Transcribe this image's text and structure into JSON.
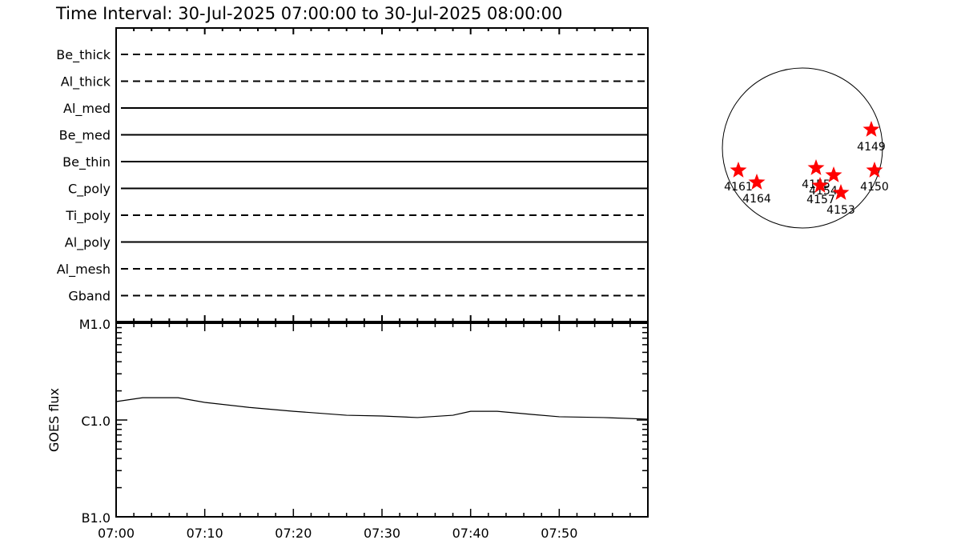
{
  "title": "Time Interval: 30-Jul-2025 07:00:00 to 30-Jul-2025 08:00:00",
  "chart_data": [
    {
      "type": "table",
      "rows": [
        {
          "label": "Be_thick",
          "style": "dashed"
        },
        {
          "label": "Al_thick",
          "style": "dashed"
        },
        {
          "label": "Al_med",
          "style": "solid"
        },
        {
          "label": "Be_med",
          "style": "solid"
        },
        {
          "label": "Be_thin",
          "style": "solid"
        },
        {
          "label": "C_poly",
          "style": "solid"
        },
        {
          "label": "Ti_poly",
          "style": "dashed"
        },
        {
          "label": "Al_poly",
          "style": "solid"
        },
        {
          "label": "Al_mesh",
          "style": "dashed"
        },
        {
          "label": "Gband",
          "style": "dashed"
        }
      ]
    },
    {
      "type": "line",
      "ylabel": "GOES flux",
      "yscale": "log",
      "ylim": [
        1e-07,
        1e-05
      ],
      "yticks": [
        {
          "value": 1e-05,
          "label": "M1.0"
        },
        {
          "value": 1e-06,
          "label": "C1.0"
        },
        {
          "value": 1e-07,
          "label": "B1.0"
        }
      ],
      "xlim": [
        "07:00",
        "08:00"
      ],
      "xticks": [
        "07:00",
        "07:10",
        "07:20",
        "07:30",
        "07:40",
        "07:50"
      ],
      "x": [
        "07:00",
        "07:03",
        "07:07",
        "07:10",
        "07:15",
        "07:20",
        "07:26",
        "07:30",
        "07:34",
        "07:38",
        "07:40",
        "07:43",
        "07:47",
        "07:50",
        "07:55",
        "08:00"
      ],
      "y": [
        1.55e-06,
        1.7e-06,
        1.7e-06,
        1.52e-06,
        1.35e-06,
        1.23e-06,
        1.12e-06,
        1.1e-06,
        1.06e-06,
        1.12e-06,
        1.23e-06,
        1.23e-06,
        1.14e-06,
        1.08e-06,
        1.06e-06,
        1.02e-06
      ]
    },
    {
      "type": "scatter",
      "active_regions": [
        "4149",
        "4161",
        "4164",
        "4155",
        "4154",
        "4157",
        "4153",
        "4150"
      ],
      "marker_color": "#ff0000"
    }
  ]
}
